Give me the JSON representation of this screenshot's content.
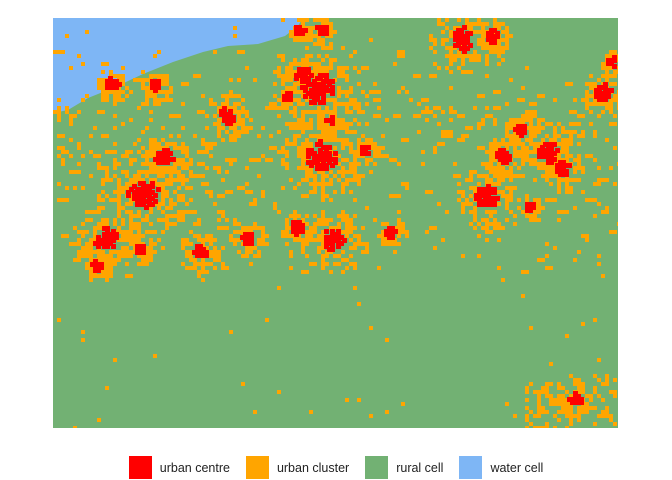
{
  "legend": {
    "items": [
      {
        "label": "urban centre",
        "color": "#FF0000"
      },
      {
        "label": "urban cluster",
        "color": "#FFA500"
      },
      {
        "label": "rural cell",
        "color": "#72B173"
      },
      {
        "label": "water cell",
        "color": "#7EB6F5"
      }
    ]
  }
}
